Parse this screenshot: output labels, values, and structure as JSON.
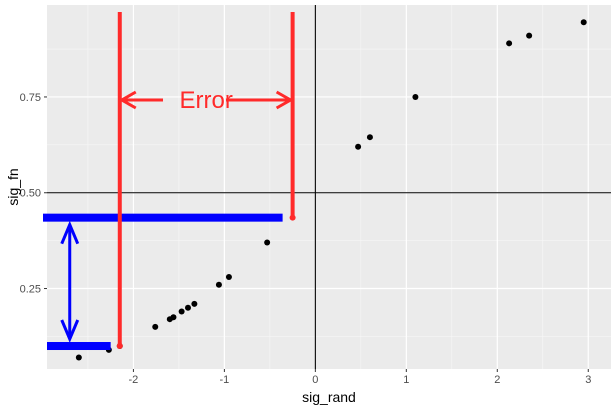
{
  "chart_data": {
    "type": "scatter",
    "xlabel": "sig_rand",
    "ylabel": "sig_fn",
    "xlim": [
      -2.95,
      3.25
    ],
    "ylim": [
      0.04,
      0.99
    ],
    "x_ticks": [
      -2,
      -1,
      0,
      1,
      2,
      3
    ],
    "x_tick_labels": [
      "-2",
      "-1",
      "0",
      "1",
      "2",
      "3"
    ],
    "y_ticks": [
      0.25,
      0.5,
      0.75
    ],
    "y_tick_labels": [
      "0.25",
      "0.50",
      "0.75"
    ],
    "grid": true,
    "reference_lines": {
      "vline_x": 0,
      "hline_y": 0.5
    },
    "points": [
      {
        "x": -2.6,
        "y": 0.07
      },
      {
        "x": -2.27,
        "y": 0.09
      },
      {
        "x": -2.15,
        "y": 0.1
      },
      {
        "x": -1.76,
        "y": 0.15
      },
      {
        "x": -1.6,
        "y": 0.17
      },
      {
        "x": -1.56,
        "y": 0.175
      },
      {
        "x": -1.47,
        "y": 0.19
      },
      {
        "x": -1.4,
        "y": 0.2
      },
      {
        "x": -1.33,
        "y": 0.21
      },
      {
        "x": -1.06,
        "y": 0.26
      },
      {
        "x": -0.95,
        "y": 0.28
      },
      {
        "x": -0.53,
        "y": 0.37
      },
      {
        "x": 0.47,
        "y": 0.62
      },
      {
        "x": 0.6,
        "y": 0.645
      },
      {
        "x": 1.1,
        "y": 0.75
      },
      {
        "x": 2.13,
        "y": 0.89
      },
      {
        "x": 2.35,
        "y": 0.91
      },
      {
        "x": 2.95,
        "y": 0.945
      }
    ],
    "annotations": {
      "error_label": "Error",
      "red_color": "#ff2a2a",
      "blue_color": "#0000ff",
      "red_lines_x": [
        -2.15,
        -0.25
      ],
      "red_left_bottom_y": 0.1,
      "red_right_bottom_y": 0.435,
      "blue_bar_upper_y": 0.435,
      "blue_bar_lower_y": 0.1,
      "blue_bar_upper_x": [
        -2.95,
        -0.36
      ],
      "blue_bar_lower_x": [
        -2.95,
        -2.25
      ],
      "blue_arrow_x": -2.7
    }
  }
}
